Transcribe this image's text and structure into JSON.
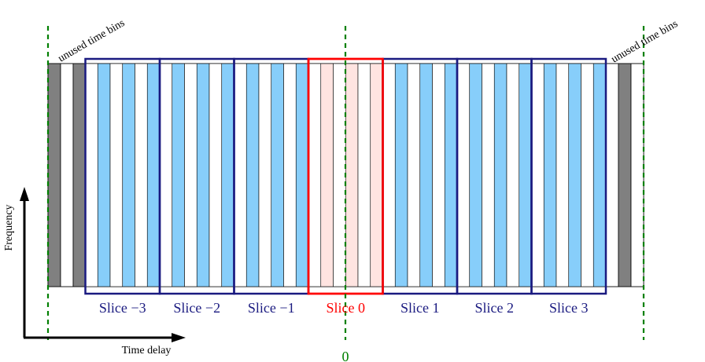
{
  "diagram": {
    "unused_bins_left_label": "unused time bins",
    "unused_bins_right_label": "unused time bins",
    "slices": [
      {
        "label": "Slice −3",
        "color": "#1a1a80"
      },
      {
        "label": "Slice −2",
        "color": "#1a1a80"
      },
      {
        "label": "Slice −1",
        "color": "#1a1a80"
      },
      {
        "label": "Slice 0",
        "color": "#ff0000"
      },
      {
        "label": "Slice 1",
        "color": "#1a1a80"
      },
      {
        "label": "Slice 2",
        "color": "#1a1a80"
      },
      {
        "label": "Slice 3",
        "color": "#1a1a80"
      }
    ],
    "zero_label": "0",
    "y_axis_label": "Frequency",
    "x_axis_label": "Time delay",
    "colors": {
      "used_bin": "#87cefa",
      "center_bin": "#ffe4e1",
      "unused_bin": "#808080",
      "slice_border": "#1a1a80",
      "center_border": "#ff0000",
      "dashed_line": "#008000",
      "zero_label": "#008000"
    }
  }
}
